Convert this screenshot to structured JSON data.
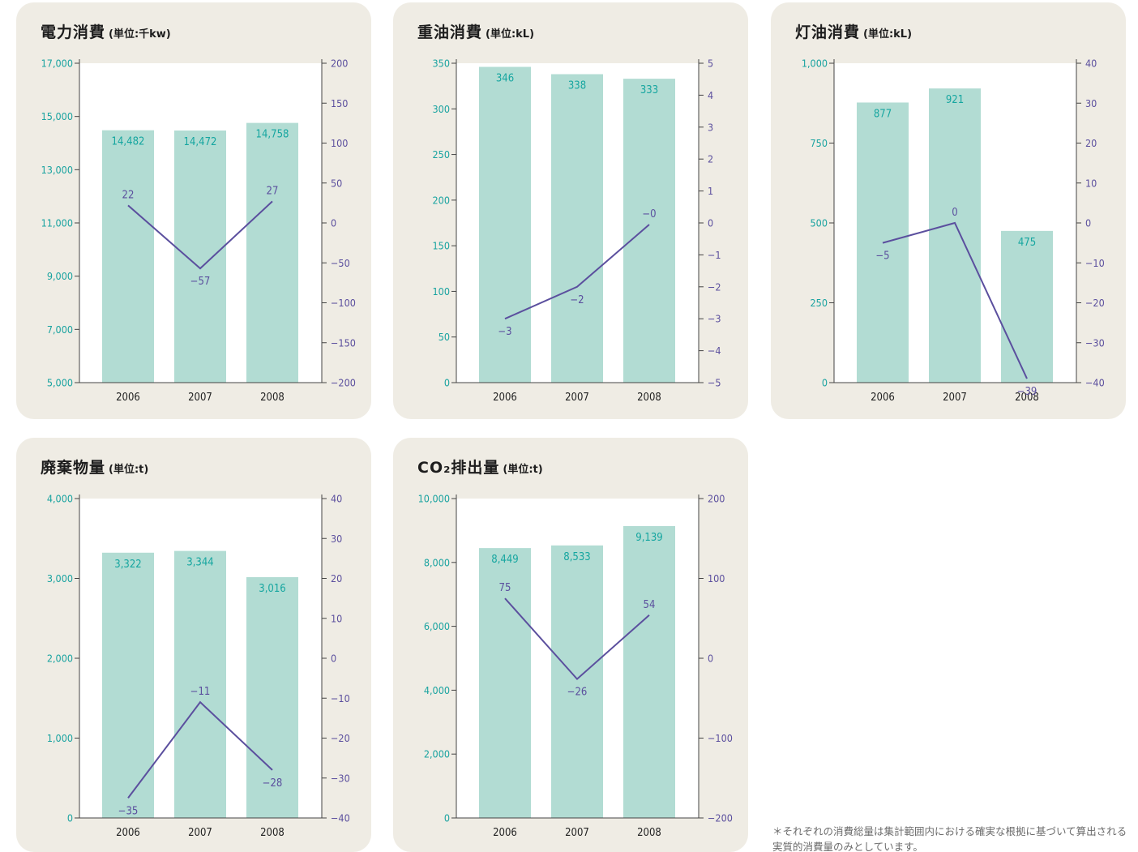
{
  "colors": {
    "panel_bg": "#efece4",
    "plot_bg": "#ffffff",
    "bar": "#b2dcd3",
    "bar_label": "#16a6a0",
    "left_axis": "#19a3a0",
    "right_axis": "#5b4f9e",
    "line": "#5b4f9e",
    "axis_line": "#444444"
  },
  "chart_data": [
    {
      "type": "bar",
      "title": "電力消費",
      "unit": "(単位:千kw)",
      "categories": [
        "2006",
        "2007",
        "2008"
      ],
      "series": [
        {
          "type": "bar",
          "values": [
            14482,
            14472,
            14758
          ],
          "labels": [
            "14,482",
            "14,472",
            "14,758"
          ],
          "axis": "left"
        },
        {
          "type": "line",
          "values": [
            22,
            -57,
            27
          ],
          "labels": [
            "22",
            "−57",
            "27"
          ],
          "axis": "right"
        }
      ],
      "ylim": [
        5000,
        17000
      ],
      "yticks": [
        "5,000",
        "7,000",
        "9,000",
        "11,000",
        "13,000",
        "15,000",
        "17,000"
      ],
      "y2lim": [
        -200,
        200
      ],
      "y2ticks": [
        "−200",
        "−150",
        "−100",
        "−50",
        "0",
        "50",
        "100",
        "150",
        "200"
      ],
      "grid": false
    },
    {
      "type": "bar",
      "title": "重油消費",
      "unit": "(単位:kL)",
      "categories": [
        "2006",
        "2007",
        "2008"
      ],
      "series": [
        {
          "type": "bar",
          "values": [
            346,
            338,
            333
          ],
          "labels": [
            "346",
            "338",
            "333"
          ],
          "axis": "left"
        },
        {
          "type": "line",
          "values": [
            -3,
            -2,
            -0.05
          ],
          "labels": [
            "−3",
            "−2",
            "−0"
          ],
          "axis": "right"
        }
      ],
      "ylim": [
        0,
        350
      ],
      "yticks": [
        "0",
        "50",
        "100",
        "150",
        "200",
        "250",
        "300",
        "350"
      ],
      "y2lim": [
        -5,
        5
      ],
      "y2ticks": [
        "−5",
        "−4",
        "−3",
        "−2",
        "−1",
        "0",
        "1",
        "2",
        "3",
        "4",
        "5"
      ],
      "grid": false
    },
    {
      "type": "bar",
      "title": "灯油消費",
      "unit": "(単位:kL)",
      "categories": [
        "2006",
        "2007",
        "2008"
      ],
      "series": [
        {
          "type": "bar",
          "values": [
            877,
            921,
            475
          ],
          "labels": [
            "877",
            "921",
            "475"
          ],
          "axis": "left"
        },
        {
          "type": "line",
          "values": [
            -5,
            0,
            -39
          ],
          "labels": [
            "−5",
            "0",
            "−39"
          ],
          "axis": "right"
        }
      ],
      "ylim": [
        0,
        1000
      ],
      "yticks": [
        "0",
        "250",
        "500",
        "750",
        "1,000"
      ],
      "y2lim": [
        -40,
        40
      ],
      "y2ticks": [
        "−40",
        "−30",
        "−20",
        "−10",
        "0",
        "10",
        "20",
        "30",
        "40"
      ],
      "grid": false
    },
    {
      "type": "bar",
      "title": "廃棄物量",
      "unit": "(単位:t)",
      "categories": [
        "2006",
        "2007",
        "2008"
      ],
      "series": [
        {
          "type": "bar",
          "values": [
            3322,
            3344,
            3016
          ],
          "labels": [
            "3,322",
            "3,344",
            "3,016"
          ],
          "axis": "left"
        },
        {
          "type": "line",
          "values": [
            -35,
            -11,
            -28
          ],
          "labels": [
            "−35",
            "−11",
            "−28"
          ],
          "axis": "right"
        }
      ],
      "ylim": [
        0,
        4000
      ],
      "yticks": [
        "0",
        "1,000",
        "2,000",
        "3,000",
        "4,000"
      ],
      "y2lim": [
        -40,
        40
      ],
      "y2ticks": [
        "−40",
        "−30",
        "−20",
        "−10",
        "0",
        "10",
        "20",
        "30",
        "40"
      ],
      "grid": false
    },
    {
      "type": "bar",
      "title": "CO₂排出量",
      "unit": "(単位:t)",
      "categories": [
        "2006",
        "2007",
        "2008"
      ],
      "series": [
        {
          "type": "bar",
          "values": [
            8449,
            8533,
            9139
          ],
          "labels": [
            "8,449",
            "8,533",
            "9,139"
          ],
          "axis": "left"
        },
        {
          "type": "line",
          "values": [
            75,
            -26,
            54
          ],
          "labels": [
            "75",
            "−26",
            "54"
          ],
          "axis": "right"
        }
      ],
      "ylim": [
        0,
        10000
      ],
      "yticks": [
        "0",
        "2,000",
        "4,000",
        "6,000",
        "8,000",
        "10,000"
      ],
      "y2lim": [
        -200,
        200
      ],
      "y2ticks": [
        "−200",
        "−100",
        "0",
        "100",
        "200"
      ],
      "grid": false
    }
  ],
  "footnote": "＊それぞれの消費総量は集計範囲内における確実な根拠に基づいて算出される実質的消費量のみとしています。"
}
